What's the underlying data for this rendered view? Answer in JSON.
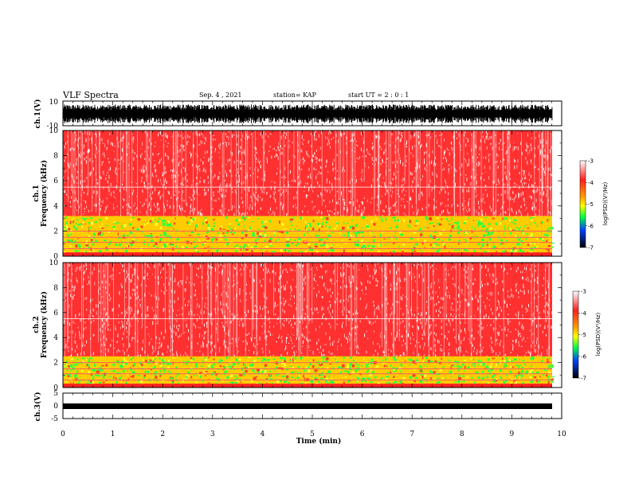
{
  "header": {
    "title": "VLF Spectra",
    "date": "Sep. 4 , 2021",
    "station": "station= KAP",
    "start": "start UT =  2 : 0 : 1"
  },
  "chart_data": [
    {
      "type": "line",
      "panel": "ch1-waveform",
      "ylabel": "ch.1(V)",
      "ylim": [
        -10,
        10
      ],
      "yticks": [
        "10",
        "-10"
      ],
      "xlim": [
        0,
        10
      ],
      "description_values": {
        "amplitude_range_V": [
          -10,
          10
        ]
      }
    },
    {
      "type": "heatmap",
      "panel": "ch1-spectrogram",
      "ylabel": "ch.1\nFrequency (kHz)",
      "ylabel_line1": "ch.1",
      "ylabel_line2": "Frequency (kHz)",
      "ylim": [
        0,
        10
      ],
      "yticks": [
        "0",
        "2",
        "4",
        "6",
        "8",
        "10"
      ],
      "xlim": [
        0,
        10
      ],
      "noise_band_top_kHz": 3.2,
      "colorbar": {
        "label": "log(PSD)(V²/Hz)",
        "range": [
          -7,
          -3
        ],
        "ticks": [
          "-3",
          "-4",
          "-5",
          "-6",
          "-7"
        ],
        "colors": [
          "#ffffff",
          "#ff0000",
          "#ffff00",
          "#00ff00",
          "#0000ff",
          "#000000"
        ]
      }
    },
    {
      "type": "heatmap",
      "panel": "ch2-spectrogram",
      "ylabel": "ch.2\nFrequency (kHz)",
      "ylabel_line1": "ch.2",
      "ylabel_line2": "Frequency (kHz)",
      "ylim": [
        0,
        10
      ],
      "yticks": [
        "0",
        "2",
        "4",
        "6",
        "8",
        "10"
      ],
      "xlim": [
        0,
        10
      ],
      "noise_band_top_kHz": 2.5,
      "colorbar": {
        "label": "log(PSD)(V²/Hz)",
        "range": [
          -7,
          -3
        ],
        "ticks": [
          "-3",
          "-4",
          "-5",
          "-6",
          "-7"
        ],
        "colors": [
          "#ffffff",
          "#ff0000",
          "#ffff00",
          "#00ff00",
          "#0000ff",
          "#000000"
        ]
      }
    },
    {
      "type": "line",
      "panel": "ch3-waveform",
      "ylabel": "ch.3(V)",
      "ylim": [
        -5,
        5
      ],
      "yticks": [
        "5",
        "0",
        "-5"
      ],
      "xlim": [
        0,
        10
      ],
      "xlabel": "Time (min)",
      "xticks": [
        "0",
        "1",
        "2",
        "3",
        "4",
        "5",
        "6",
        "7",
        "8",
        "9",
        "10"
      ]
    }
  ]
}
